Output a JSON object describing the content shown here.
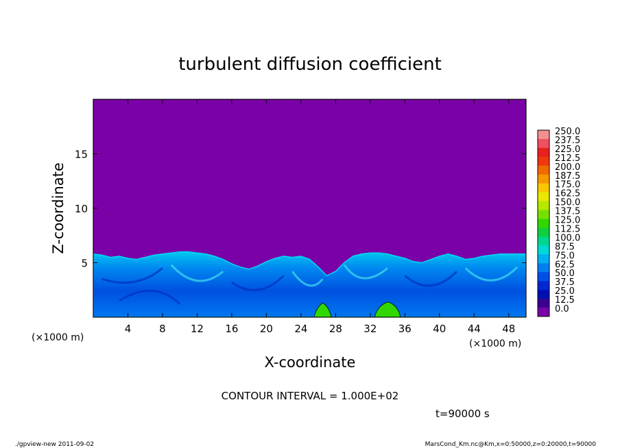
{
  "chart_data": {
    "type": "heatmap",
    "title": "turbulent diffusion coefficient",
    "xlabel": "X-coordinate",
    "ylabel": "Z-coordinate",
    "x_unit": "(×1000 m)",
    "y_unit": "(×1000 m)",
    "xlim": [
      0,
      50
    ],
    "ylim": [
      0,
      20
    ],
    "x_ticks": [
      4,
      8,
      12,
      16,
      20,
      24,
      28,
      32,
      36,
      40,
      44,
      48
    ],
    "y_ticks": [
      5,
      10,
      15
    ],
    "background_level_color": "#7a00a8",
    "turbulent_layer_top_profile": {
      "x": [
        0,
        1,
        2,
        3,
        4,
        5,
        6,
        7,
        8,
        9,
        10,
        11,
        12,
        13,
        14,
        15,
        16,
        17,
        18,
        19,
        20,
        21,
        22,
        23,
        24,
        25,
        26,
        27,
        28,
        29,
        30,
        31,
        32,
        33,
        34,
        35,
        36,
        37,
        38,
        39,
        40,
        41,
        42,
        43,
        44,
        45,
        46,
        47,
        48,
        49,
        50
      ],
      "z": [
        5.8,
        5.7,
        5.5,
        5.6,
        5.4,
        5.3,
        5.5,
        5.7,
        5.8,
        5.9,
        6.0,
        6.0,
        5.9,
        5.8,
        5.6,
        5.3,
        4.9,
        4.6,
        4.4,
        4.7,
        5.1,
        5.4,
        5.6,
        5.5,
        5.6,
        5.3,
        4.6,
        3.8,
        4.2,
        5.0,
        5.6,
        5.8,
        5.9,
        5.9,
        5.8,
        5.6,
        5.4,
        5.1,
        5.0,
        5.3,
        5.6,
        5.8,
        5.6,
        5.3,
        5.4,
        5.6,
        5.7,
        5.8,
        5.8,
        5.8,
        5.8
      ]
    },
    "high_value_patches": [
      {
        "x": [
          25.5,
          27.5
        ],
        "z": [
          0,
          1.3
        ],
        "level": 112.5
      },
      {
        "x": [
          32.5,
          35.5
        ],
        "z": [
          0,
          1.4
        ],
        "level": 112.5
      }
    ],
    "colorbar": {
      "levels": [
        "250.0",
        "237.5",
        "225.0",
        "212.5",
        "200.0",
        "187.5",
        "175.0",
        "162.5",
        "150.0",
        "137.5",
        "125.0",
        "112.5",
        "100.0",
        "87.5",
        "75.0",
        "62.5",
        "50.0",
        "37.5",
        "25.0",
        "12.5",
        "0.0"
      ],
      "colors": [
        "#f09090",
        "#f05060",
        "#e82020",
        "#f03810",
        "#f06a00",
        "#f89800",
        "#f8c800",
        "#e8e800",
        "#b8e800",
        "#78e000",
        "#30d800",
        "#10d040",
        "#00d890",
        "#00d8d8",
        "#00b0f0",
        "#0080f0",
        "#0050e8",
        "#0028d0",
        "#0010b0",
        "#3a0090",
        "#7a00a8"
      ]
    },
    "contour_interval": "CONTOUR INTERVAL = 1.000E+02",
    "time_label": "t=90000 s",
    "footer_left": "./gpview-new 2011-09-02",
    "footer_right": "MarsCond_Km.nc@Km,x=0:50000,z=0:20000,t=90000"
  }
}
